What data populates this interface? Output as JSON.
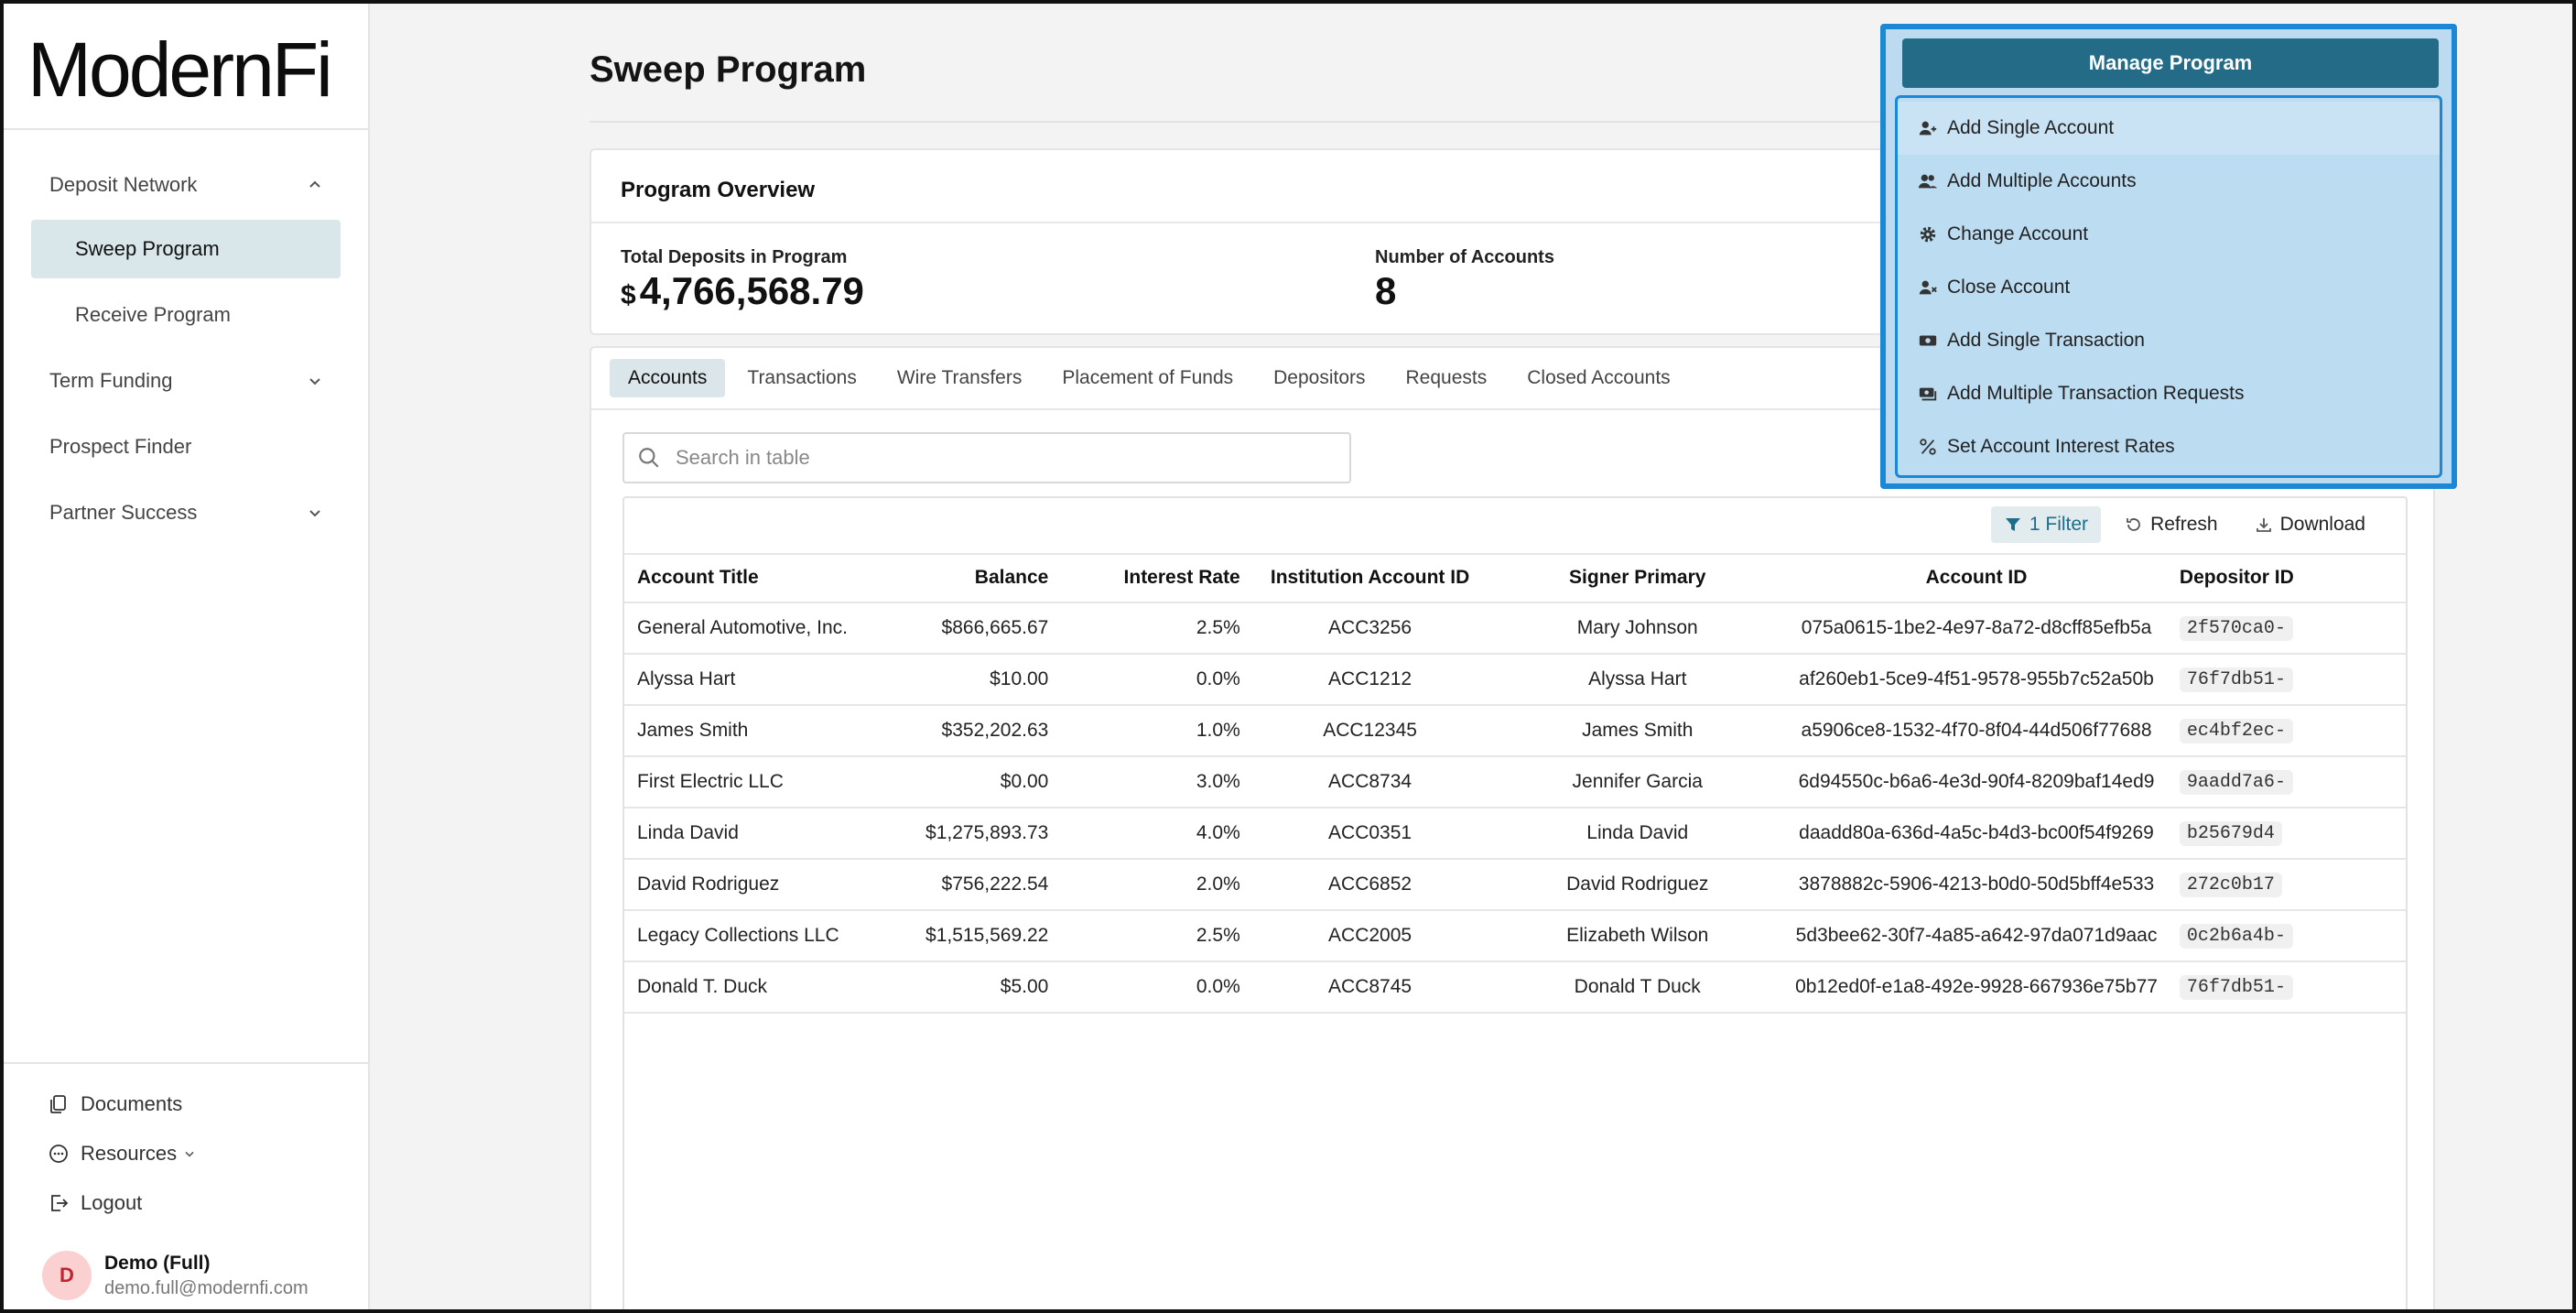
{
  "app": {
    "logo": "ModernFi"
  },
  "sidebar": {
    "groups": [
      {
        "label": "Deposit Network",
        "expanded": true
      },
      {
        "label": "Term Funding",
        "expanded": false
      },
      {
        "label": "Prospect Finder"
      },
      {
        "label": "Partner Success",
        "expanded": false
      }
    ],
    "sub_items": [
      {
        "label": "Sweep Program",
        "active": true
      },
      {
        "label": "Receive Program",
        "active": false
      }
    ],
    "footer": {
      "documents": "Documents",
      "resources": "Resources",
      "logout": "Logout"
    },
    "user": {
      "initial": "D",
      "name": "Demo (Full)",
      "email": "demo.full@modernfi.com"
    }
  },
  "page": {
    "title": "Sweep Program"
  },
  "overview": {
    "title": "Program Overview",
    "total_deposits_label": "Total Deposits in Program",
    "currency_symbol": "$",
    "total_deposits_value": "4,766,568.79",
    "num_accounts_label": "Number of Accounts",
    "num_accounts_value": "8"
  },
  "tabs": [
    "Accounts",
    "Transactions",
    "Wire Transfers",
    "Placement of Funds",
    "Depositors",
    "Requests",
    "Closed Accounts"
  ],
  "active_tab": "Accounts",
  "search": {
    "placeholder": "Search in table",
    "value": ""
  },
  "toolbar": {
    "filter": "1 Filter",
    "refresh": "Refresh",
    "download": "Download"
  },
  "table": {
    "columns": [
      "Account Title",
      "Balance",
      "Interest Rate",
      "Institution Account ID",
      "Signer Primary",
      "Account ID",
      "Depositor ID"
    ],
    "rows": [
      [
        "General Automotive, Inc.",
        "$866,665.67",
        "2.5%",
        "ACC3256",
        "Mary Johnson",
        "075a0615-1be2-4e97-8a72-d8cff85efb5a",
        "2f570ca0-"
      ],
      [
        "Alyssa Hart",
        "$10.00",
        "0.0%",
        "ACC1212",
        "Alyssa Hart",
        "af260eb1-5ce9-4f51-9578-955b7c52a50b",
        "76f7db51-"
      ],
      [
        "James Smith",
        "$352,202.63",
        "1.0%",
        "ACC12345",
        "James Smith",
        "a5906ce8-1532-4f70-8f04-44d506f77688",
        "ec4bf2ec-"
      ],
      [
        "First Electric LLC",
        "$0.00",
        "3.0%",
        "ACC8734",
        "Jennifer Garcia",
        "6d94550c-b6a6-4e3d-90f4-8209baf14ed9",
        "9aadd7a6-"
      ],
      [
        "Linda David",
        "$1,275,893.73",
        "4.0%",
        "ACC0351",
        "Linda David",
        "daadd80a-636d-4a5c-b4d3-bc00f54f9269",
        "b25679d4"
      ],
      [
        "David Rodriguez",
        "$756,222.54",
        "2.0%",
        "ACC6852",
        "David Rodriguez",
        "3878882c-5906-4213-b0d0-50d5bff4e533",
        "272c0b17"
      ],
      [
        "Legacy Collections LLC",
        "$1,515,569.22",
        "2.5%",
        "ACC2005",
        "Elizabeth Wilson",
        "5d3bee62-30f7-4a85-a642-97da071d9aac",
        "0c2b6a4b-"
      ],
      [
        "Donald T. Duck",
        "$5.00",
        "0.0%",
        "ACC8745",
        "Donald T Duck",
        "0b12ed0f-e1a8-492e-9928-667936e75b77",
        "76f7db51-"
      ]
    ]
  },
  "manage_menu": {
    "button": "Manage Program",
    "items": [
      {
        "label": "Add Single Account",
        "icon": "user-plus-icon"
      },
      {
        "label": "Add Multiple Accounts",
        "icon": "users-icon"
      },
      {
        "label": "Change Account",
        "icon": "gear-icon"
      },
      {
        "label": "Close Account",
        "icon": "user-x-icon"
      },
      {
        "label": "Add Single Transaction",
        "icon": "money-icon"
      },
      {
        "label": "Add Multiple Transaction Requests",
        "icon": "money-stack-icon"
      },
      {
        "label": "Set Account Interest Rates",
        "icon": "percent-icon"
      }
    ],
    "accent": "#1a88d6",
    "button_color": "#236b86"
  }
}
